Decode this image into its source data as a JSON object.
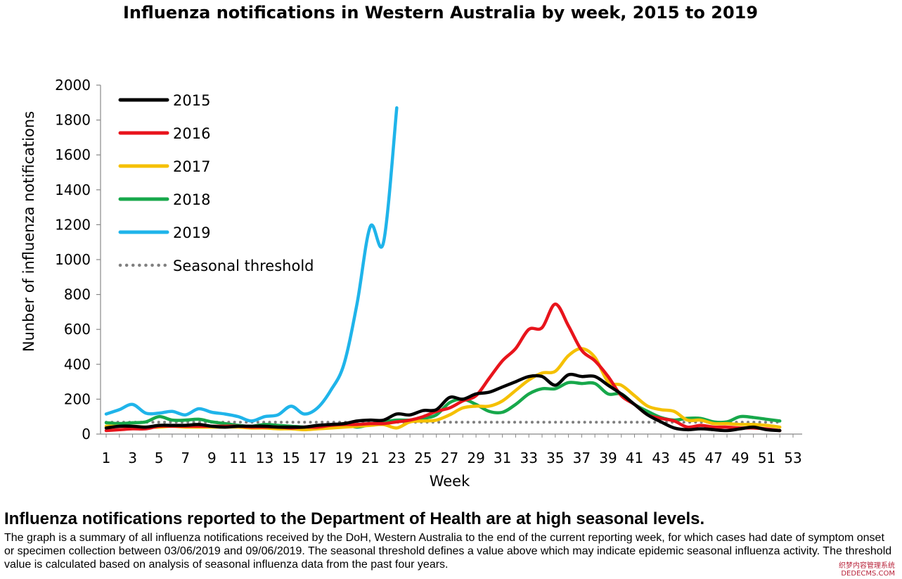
{
  "chart_data": {
    "type": "line",
    "title": "Influenza notifications in Western Australia by week, 2015 to 2019",
    "xlabel": "Week",
    "ylabel": "Nunber of influenza notifications",
    "xlim": [
      1,
      53
    ],
    "ylim": [
      0,
      2000
    ],
    "x_ticks": [
      "1",
      "3",
      "5",
      "7",
      "9",
      "11",
      "13",
      "15",
      "17",
      "19",
      "21",
      "23",
      "25",
      "27",
      "29",
      "31",
      "33",
      "35",
      "37",
      "39",
      "41",
      "43",
      "45",
      "47",
      "49",
      "51",
      "53"
    ],
    "y_ticks": [
      "0",
      "200",
      "400",
      "600",
      "800",
      "1000",
      "1200",
      "1400",
      "1600",
      "1800",
      "2000"
    ],
    "legend_position": "top-left",
    "series": [
      {
        "name": "2015",
        "color": "#000000",
        "style": "solid",
        "x": [
          1,
          2,
          3,
          4,
          5,
          6,
          7,
          8,
          9,
          10,
          11,
          12,
          13,
          14,
          15,
          16,
          17,
          18,
          19,
          20,
          21,
          22,
          23,
          24,
          25,
          26,
          27,
          28,
          29,
          30,
          31,
          32,
          33,
          34,
          35,
          36,
          37,
          38,
          39,
          40,
          41,
          42,
          43,
          44,
          45,
          46,
          47,
          48,
          49,
          50,
          51,
          52
        ],
        "values": [
          35,
          45,
          45,
          40,
          50,
          50,
          50,
          55,
          45,
          40,
          45,
          45,
          45,
          40,
          40,
          40,
          50,
          55,
          60,
          75,
          80,
          80,
          115,
          110,
          135,
          140,
          210,
          200,
          230,
          240,
          270,
          300,
          330,
          330,
          280,
          340,
          330,
          330,
          280,
          230,
          170,
          110,
          70,
          35,
          25,
          30,
          25,
          20,
          30,
          40,
          25,
          20
        ]
      },
      {
        "name": "2016",
        "color": "#e8141c",
        "style": "solid",
        "x": [
          1,
          2,
          3,
          4,
          5,
          6,
          7,
          8,
          9,
          10,
          11,
          12,
          13,
          14,
          15,
          16,
          17,
          18,
          19,
          20,
          21,
          22,
          23,
          24,
          25,
          26,
          27,
          28,
          29,
          30,
          31,
          32,
          33,
          34,
          35,
          36,
          37,
          38,
          39,
          40,
          41,
          42,
          43,
          44,
          45,
          46,
          47,
          48,
          49,
          50,
          51,
          52
        ],
        "values": [
          20,
          25,
          30,
          30,
          45,
          45,
          45,
          45,
          45,
          45,
          45,
          40,
          40,
          40,
          35,
          40,
          40,
          50,
          55,
          55,
          60,
          60,
          70,
          80,
          100,
          130,
          150,
          190,
          220,
          320,
          420,
          490,
          600,
          610,
          745,
          620,
          480,
          420,
          330,
          220,
          170,
          110,
          90,
          75,
          40,
          50,
          40,
          40,
          35,
          35,
          30,
          20
        ]
      },
      {
        "name": "2017",
        "color": "#f5c000",
        "style": "solid",
        "x": [
          1,
          2,
          3,
          4,
          5,
          6,
          7,
          8,
          9,
          10,
          11,
          12,
          13,
          14,
          15,
          16,
          17,
          18,
          19,
          20,
          21,
          22,
          23,
          24,
          25,
          26,
          27,
          28,
          29,
          30,
          31,
          32,
          33,
          34,
          35,
          36,
          37,
          38,
          39,
          40,
          41,
          42,
          43,
          44,
          45,
          46,
          47,
          48,
          49,
          50,
          51,
          52
        ],
        "values": [
          45,
          45,
          45,
          40,
          40,
          45,
          40,
          40,
          40,
          40,
          40,
          35,
          35,
          30,
          30,
          25,
          30,
          35,
          40,
          45,
          50,
          55,
          35,
          70,
          75,
          80,
          110,
          150,
          160,
          160,
          190,
          250,
          310,
          350,
          360,
          450,
          490,
          440,
          300,
          280,
          220,
          160,
          140,
          130,
          80,
          80,
          60,
          60,
          55,
          55,
          50,
          40
        ]
      },
      {
        "name": "2018",
        "color": "#17a84b",
        "style": "solid",
        "x": [
          1,
          2,
          3,
          4,
          5,
          6,
          7,
          8,
          9,
          10,
          11,
          12,
          13,
          14,
          15,
          16,
          17,
          18,
          19,
          20,
          21,
          22,
          23,
          24,
          25,
          26,
          27,
          28,
          29,
          30,
          31,
          32,
          33,
          34,
          35,
          36,
          37,
          38,
          39,
          40,
          41,
          42,
          43,
          44,
          45,
          46,
          47,
          48,
          49,
          50,
          51,
          52
        ],
        "values": [
          65,
          60,
          65,
          70,
          100,
          80,
          80,
          85,
          70,
          60,
          50,
          45,
          55,
          50,
          45,
          40,
          40,
          45,
          55,
          40,
          55,
          70,
          80,
          80,
          90,
          110,
          180,
          200,
          170,
          130,
          125,
          170,
          230,
          260,
          260,
          295,
          290,
          290,
          230,
          230,
          170,
          130,
          95,
          80,
          90,
          90,
          70,
          70,
          100,
          95,
          85,
          75
        ]
      },
      {
        "name": "2019",
        "color": "#1fb4ea",
        "style": "solid",
        "x": [
          1,
          2,
          3,
          4,
          5,
          6,
          7,
          8,
          9,
          10,
          11,
          12,
          13,
          14,
          15,
          16,
          17,
          18,
          19,
          20,
          21,
          22,
          23
        ],
        "values": [
          115,
          140,
          170,
          120,
          120,
          130,
          110,
          145,
          125,
          115,
          100,
          75,
          100,
          110,
          160,
          115,
          150,
          250,
          400,
          750,
          1190,
          1100,
          1870
        ]
      },
      {
        "name": "Seasonal threshold",
        "color": "#808080",
        "style": "dotted",
        "x": [
          1,
          52
        ],
        "values": [
          68,
          68
        ]
      }
    ]
  },
  "headline": "Influenza notifications reported to the Department of Health are at high seasonal levels.",
  "description": "The graph is a summary of all influenza notifications received by the DoH, Western Australia to the end of the current reporting week, for which cases had date of symptom onset or specimen collection between 03/06/2019 and 09/06/2019. The seasonal threshold defines a value above which may indicate epidemic seasonal influenza activity. The threshold value is calculated based on analysis of seasonal influenza data from the past four years.",
  "watermark": {
    "line1": "织梦内容管理系统",
    "line2": "DEDECMS.COM"
  }
}
